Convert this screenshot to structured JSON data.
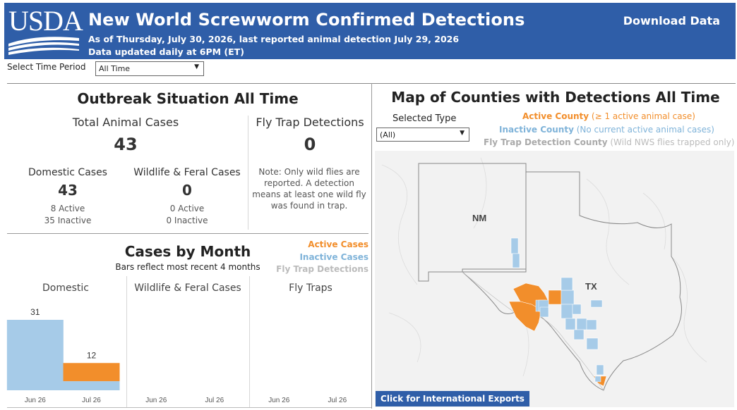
{
  "header": {
    "logo_text": "USDA",
    "title": "New World Screwworm Confirmed Detections",
    "subtitle_1": "As of Thursday, July 30, 2026, last reported animal detection July 29, 2026",
    "subtitle_2": "Data updated daily at 6PM (ET)",
    "download_label": "Download Data"
  },
  "filters": {
    "time_period_label": "Select Time Period",
    "time_period_value": "All Time",
    "selected_type_label": "Selected Type",
    "selected_type_value": "(All)"
  },
  "outbreak": {
    "title": "Outbreak Situation All Time",
    "total_label": "Total Animal Cases",
    "total_value": "43",
    "fly_trap_label": "Fly Trap Detections",
    "fly_trap_value": "0",
    "domestic_label": "Domestic Cases",
    "domestic_value": "43",
    "domestic_active": "8 Active",
    "domestic_inactive": "35 Inactive",
    "wildlife_label": "Wildlife & Feral Cases",
    "wildlife_value": "0",
    "wildlife_active": "0 Active",
    "wildlife_inactive": "0 Inactive",
    "note": "Note: Only wild flies are reported. A detection means at least one wild fly was found in trap."
  },
  "cases_by_month": {
    "title": "Cases by Month",
    "subtitle": "Bars reflect most recent 4 months",
    "legend": {
      "active": "Active Cases",
      "inactive": "Inactive Cases",
      "fly_trap": "Fly Trap Detections"
    },
    "panels": [
      "Domestic",
      "Wildlife & Feral Cases",
      "Fly Traps"
    ],
    "x_labels": [
      "Jun 26",
      "Jul 26"
    ]
  },
  "chart_data": {
    "type": "bar",
    "title": "Cases by Month",
    "subtitle": "Bars reflect most recent 4 months",
    "panels": [
      {
        "name": "Domestic",
        "categories": [
          "Jun 26",
          "Jul 26"
        ],
        "series": [
          {
            "name": "Inactive Cases",
            "color": "#a6cbe8",
            "values": [
              31,
              4
            ]
          },
          {
            "name": "Active Cases",
            "color": "#f28e2b",
            "values": [
              0,
              8
            ]
          }
        ],
        "totals": [
          31,
          12
        ]
      },
      {
        "name": "Wildlife & Feral Cases",
        "categories": [
          "Jun 26",
          "Jul 26"
        ],
        "series": [
          {
            "name": "Inactive Cases",
            "color": "#a6cbe8",
            "values": [
              0,
              0
            ]
          },
          {
            "name": "Active Cases",
            "color": "#f28e2b",
            "values": [
              0,
              0
            ]
          }
        ]
      },
      {
        "name": "Fly Traps",
        "categories": [
          "Jun 26",
          "Jul 26"
        ],
        "series": [
          {
            "name": "Fly Trap Detections",
            "color": "#bbbbbb",
            "values": [
              0,
              0
            ]
          }
        ]
      }
    ],
    "ylim": [
      0,
      31
    ]
  },
  "map": {
    "title": "Map of Counties with Detections All Time",
    "legend": {
      "active_strong": "Active County",
      "active_rest": " (≥ 1 active animal case)",
      "inactive_strong": "Inactive County",
      "inactive_rest": " (No current active animal cases)",
      "fly_strong": "Fly Trap Detection County",
      "fly_rest": " (Wild NWS flies trapped only)"
    },
    "state_labels": {
      "nm": "NM",
      "tx": "TX"
    },
    "intl_button": "Click for International Exports",
    "colors": {
      "active": "#f28e2b",
      "inactive": "#a6cbe8",
      "fly": "#bbbbbb"
    }
  }
}
